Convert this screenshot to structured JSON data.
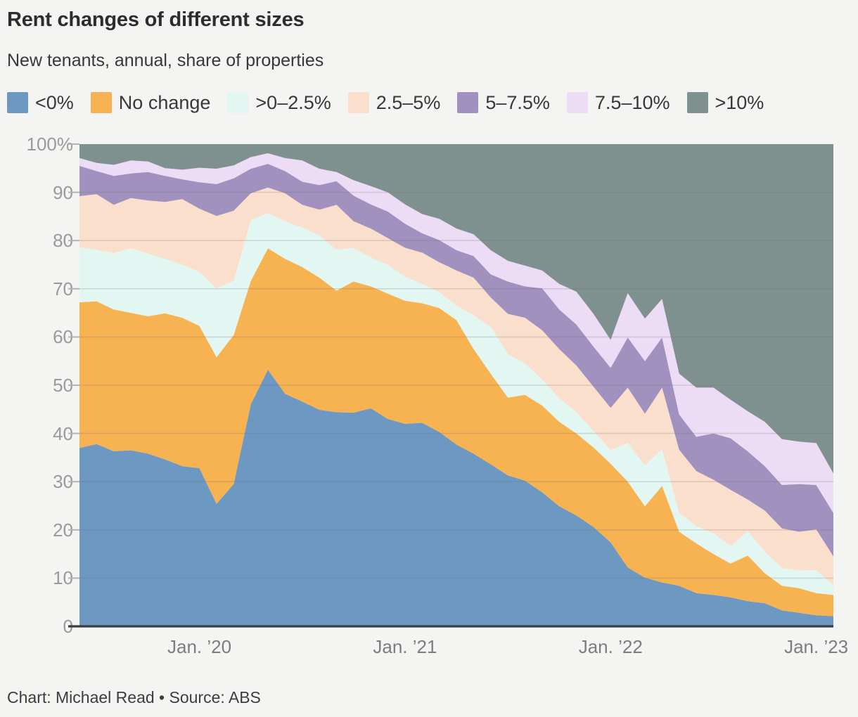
{
  "header": {
    "title": "Rent changes of different sizes",
    "subtitle": "New tenants, annual, share of properties"
  },
  "caption": "Chart: Michael Read • Source: ABS",
  "colors": {
    "background": "#f4f4f2",
    "gridline": "rgba(110,110,110,0.22)",
    "axis_line": "#3c3c3c",
    "tick": "#b3b3b3",
    "title_text": "#2d2d2d",
    "axis_label_text": "#9a9a9a",
    "x_label_text": "#7d7d7d"
  },
  "chart_data": {
    "type": "area",
    "stacked": true,
    "unit": "percent",
    "title": "Rent changes of different sizes",
    "subtitle": "New tenants, annual, share of properties",
    "legend_position": "top",
    "grid": true,
    "ylim": [
      0,
      100
    ],
    "y_ticks": [
      {
        "v": 0,
        "label": "0"
      },
      {
        "v": 10,
        "label": "10"
      },
      {
        "v": 20,
        "label": "20"
      },
      {
        "v": 30,
        "label": "30"
      },
      {
        "v": 40,
        "label": "40"
      },
      {
        "v": 50,
        "label": "50"
      },
      {
        "v": 60,
        "label": "60"
      },
      {
        "v": 70,
        "label": "70"
      },
      {
        "v": 80,
        "label": "80"
      },
      {
        "v": 90,
        "label": "90"
      },
      {
        "v": 100,
        "label": "100%"
      }
    ],
    "x": [
      "2019-06",
      "2019-07",
      "2019-08",
      "2019-09",
      "2019-10",
      "2019-11",
      "2019-12",
      "2020-01",
      "2020-02",
      "2020-03",
      "2020-04",
      "2020-05",
      "2020-06",
      "2020-07",
      "2020-08",
      "2020-09",
      "2020-10",
      "2020-11",
      "2020-12",
      "2021-01",
      "2021-02",
      "2021-03",
      "2021-04",
      "2021-05",
      "2021-06",
      "2021-07",
      "2021-08",
      "2021-09",
      "2021-10",
      "2021-11",
      "2021-12",
      "2022-01",
      "2022-02",
      "2022-03",
      "2022-04",
      "2022-05",
      "2022-06",
      "2022-07",
      "2022-08",
      "2022-09",
      "2022-10",
      "2022-11",
      "2022-12",
      "2023-01",
      "2023-02"
    ],
    "x_ticks": [
      {
        "index": 7,
        "label": "Jan. ’20"
      },
      {
        "index": 19,
        "label": "Jan. ’21"
      },
      {
        "index": 31,
        "label": "Jan. ’22"
      },
      {
        "index": 43,
        "label": "Jan. ’23"
      }
    ],
    "series": [
      {
        "name": "<0%",
        "color": "#6c98c2",
        "values": [
          37.0,
          37.8,
          36.3,
          36.5,
          35.8,
          34.6,
          33.2,
          32.8,
          25.4,
          29.5,
          46.0,
          53.2,
          48.2,
          46.6,
          44.9,
          44.4,
          44.3,
          45.2,
          43.0,
          42.0,
          42.2,
          40.3,
          37.7,
          35.8,
          33.6,
          31.3,
          30.2,
          27.8,
          24.9,
          23.0,
          20.6,
          17.4,
          12.2,
          10.1,
          9.1,
          8.4,
          6.9,
          6.5,
          6.0,
          5.2,
          4.8,
          3.3,
          2.8,
          2.3,
          2.1
        ]
      },
      {
        "name": "No change",
        "color": "#f7b351",
        "values": [
          30.2,
          29.6,
          29.4,
          28.5,
          28.5,
          30.3,
          30.8,
          29.5,
          30.4,
          30.9,
          25.6,
          25.2,
          28.0,
          27.9,
          27.4,
          25.2,
          27.2,
          25.3,
          26.0,
          25.5,
          24.8,
          25.7,
          25.8,
          21.7,
          18.8,
          16.1,
          17.8,
          18.0,
          17.5,
          17.0,
          16.5,
          16.3,
          17.8,
          14.8,
          20.0,
          11.2,
          10.3,
          8.5,
          7.0,
          9.5,
          6.2,
          5.1,
          5.1,
          4.6,
          4.4
        ]
      },
      {
        "name": ">0–2.5%",
        "color": "#e2f6f2",
        "values": [
          11.4,
          10.7,
          11.7,
          13.4,
          13.0,
          11.3,
          11.0,
          11.2,
          14.3,
          11.2,
          12.6,
          7.3,
          7.8,
          8.2,
          8.8,
          8.5,
          7.0,
          6.0,
          6.0,
          5.0,
          4.0,
          3.3,
          3.0,
          7.0,
          9.7,
          9.1,
          6.5,
          5.4,
          4.9,
          4.4,
          3.4,
          2.9,
          8.0,
          8.5,
          7.7,
          3.9,
          3.6,
          4.3,
          3.6,
          5.0,
          4.5,
          3.7,
          3.7,
          4.7,
          2.1
        ]
      },
      {
        "name": "2.5–5%",
        "color": "#fbdfcd",
        "values": [
          10.6,
          11.5,
          10.0,
          10.4,
          11.0,
          11.8,
          13.6,
          13.1,
          15.0,
          14.6,
          5.6,
          5.3,
          5.8,
          4.7,
          5.3,
          9.3,
          5.5,
          6.0,
          5.5,
          6.0,
          6.5,
          6.2,
          7.3,
          7.8,
          6.1,
          8.3,
          9.5,
          10.2,
          10.2,
          9.7,
          9.2,
          8.7,
          11.5,
          10.7,
          12.7,
          13.1,
          11.4,
          11.1,
          11.7,
          6.6,
          8.5,
          8.2,
          8.0,
          8.5,
          5.9
        ]
      },
      {
        "name": "5–7.5%",
        "color": "#a191bf",
        "values": [
          6.3,
          4.8,
          6.0,
          5.1,
          5.9,
          5.4,
          4.1,
          5.5,
          6.6,
          6.7,
          5.1,
          4.9,
          4.6,
          4.8,
          5.1,
          4.9,
          5.3,
          5.0,
          5.5,
          5.0,
          4.0,
          4.6,
          4.2,
          4.5,
          4.8,
          6.7,
          6.5,
          8.7,
          8.2,
          8.5,
          8.3,
          8.3,
          10.4,
          10.9,
          10.4,
          7.3,
          7.1,
          9.6,
          10.7,
          10.0,
          9.2,
          9.0,
          9.9,
          9.2,
          9.0
        ]
      },
      {
        "name": "7.5–10%",
        "color": "#eddcf6",
        "values": [
          1.6,
          1.7,
          2.3,
          2.7,
          2.2,
          1.6,
          2.0,
          3.0,
          3.2,
          2.7,
          2.4,
          2.2,
          2.7,
          4.4,
          3.4,
          1.9,
          3.2,
          3.8,
          4.0,
          4.0,
          4.0,
          4.4,
          4.5,
          4.5,
          5.0,
          4.3,
          4.3,
          3.7,
          5.3,
          6.8,
          6.8,
          5.8,
          9.2,
          8.8,
          8.0,
          8.5,
          10.2,
          9.5,
          8.0,
          8.3,
          9.2,
          9.5,
          8.8,
          8.7,
          8.2
        ]
      },
      {
        "name": ">10%",
        "color": "#7f918e",
        "values": [
          2.9,
          3.9,
          4.3,
          3.4,
          3.6,
          5.0,
          5.3,
          4.9,
          5.1,
          4.4,
          2.7,
          1.9,
          2.9,
          3.4,
          5.1,
          5.8,
          7.5,
          8.7,
          10.0,
          12.5,
          14.5,
          15.5,
          17.5,
          18.7,
          22.0,
          24.2,
          25.2,
          26.2,
          29.0,
          30.6,
          35.2,
          40.6,
          30.9,
          36.2,
          32.1,
          47.6,
          50.5,
          50.5,
          53.0,
          55.4,
          57.6,
          61.2,
          61.7,
          62.0,
          68.3
        ]
      }
    ]
  }
}
